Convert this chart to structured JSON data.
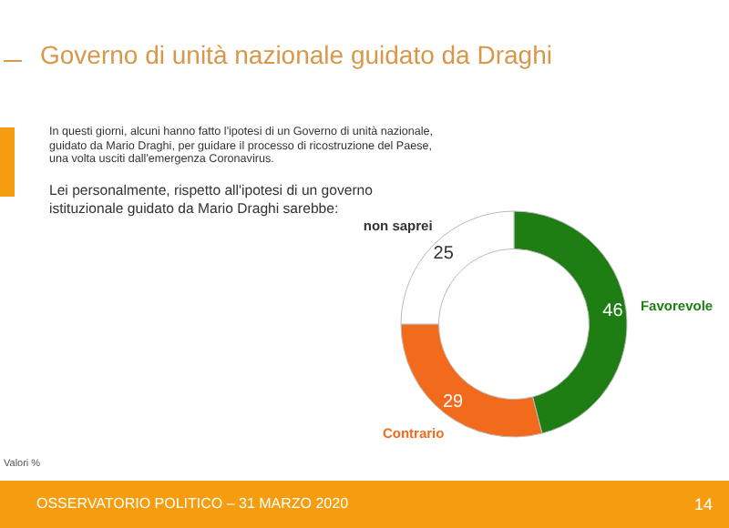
{
  "chart_data": {
    "type": "donut",
    "title": "Governo di unità nazionale guidato da Draghi",
    "subtitle": "In questi giorni, alcuni hanno fatto l'ipotesi di un Governo di unità nazionale, guidato da Mario Draghi, per guidare il processo di ricostruzione del Paese, una volta usciti dall'emergenza Coronavirus.",
    "annotations": [
      "Lei personalmente, rispetto all'ipotesi di un governo istituzionale guidato da Mario Draghi sarebbe:",
      "Valori %",
      "OSSERVATORIO POLITICO – 31 MARZO 2020",
      "14"
    ],
    "categories": [
      "Favorevole",
      "Contrario",
      "non saprei"
    ],
    "values": [
      46,
      29,
      25
    ],
    "colors": [
      "#1e7e14",
      "#f26b1d",
      "#ffffff"
    ],
    "data_labels": true
  }
}
